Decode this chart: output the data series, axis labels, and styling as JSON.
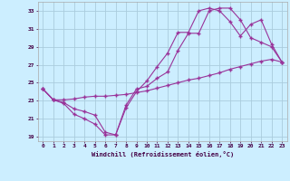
{
  "xlabel": "Windchill (Refroidissement éolien,°C)",
  "bg_color": "#cceeff",
  "line_color": "#993399",
  "grid_color": "#aaccdd",
  "xlim": [
    -0.5,
    23.5
  ],
  "ylim": [
    18.5,
    34.0
  ],
  "xticks": [
    0,
    1,
    2,
    3,
    4,
    5,
    6,
    7,
    8,
    9,
    10,
    11,
    12,
    13,
    14,
    15,
    16,
    17,
    18,
    19,
    20,
    21,
    22,
    23
  ],
  "yticks": [
    19,
    21,
    23,
    25,
    27,
    29,
    31,
    33
  ],
  "line1_x": [
    0,
    1,
    2,
    3,
    4,
    5,
    6,
    7,
    8,
    9,
    10,
    11,
    12,
    13,
    14,
    15,
    16,
    17,
    18,
    19,
    20,
    21,
    22,
    23
  ],
  "line1_y": [
    24.3,
    23.1,
    22.7,
    21.5,
    21.0,
    20.4,
    19.2,
    19.2,
    22.5,
    24.3,
    24.6,
    25.5,
    26.2,
    28.6,
    30.5,
    30.5,
    33.0,
    33.3,
    33.3,
    32.0,
    30.0,
    29.5,
    29.0,
    27.3
  ],
  "line2_x": [
    0,
    1,
    2,
    3,
    4,
    5,
    6,
    7,
    8,
    9,
    10,
    11,
    12,
    13,
    14,
    15,
    16,
    17,
    18,
    19,
    20,
    21,
    22,
    23
  ],
  "line2_y": [
    24.3,
    23.1,
    23.1,
    23.2,
    23.4,
    23.5,
    23.5,
    23.6,
    23.7,
    23.9,
    24.1,
    24.4,
    24.7,
    25.0,
    25.3,
    25.5,
    25.8,
    26.1,
    26.5,
    26.8,
    27.1,
    27.4,
    27.6,
    27.3
  ],
  "line3_x": [
    0,
    1,
    2,
    3,
    4,
    5,
    6,
    7,
    8,
    9,
    10,
    11,
    12,
    13,
    14,
    15,
    16,
    17,
    18,
    19,
    20,
    21,
    22,
    23
  ],
  "line3_y": [
    24.3,
    23.1,
    22.8,
    22.1,
    21.8,
    21.4,
    19.5,
    19.2,
    22.2,
    24.0,
    25.2,
    26.8,
    28.3,
    30.6,
    30.6,
    33.0,
    33.3,
    33.0,
    31.8,
    30.2,
    31.5,
    32.0,
    29.3,
    27.3
  ]
}
